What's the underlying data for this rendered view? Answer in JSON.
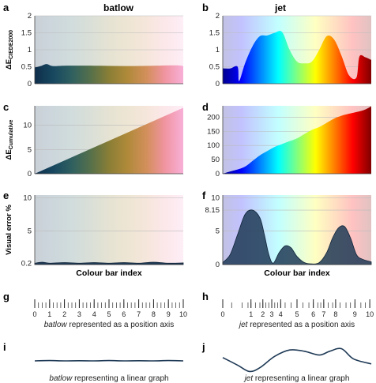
{
  "figure": {
    "columns": [
      {
        "title": "batlow",
        "colormap": "batlow"
      },
      {
        "title": "jet",
        "colormap": "jet"
      }
    ]
  },
  "colors": {
    "batlow_stops": [
      "#0f2e4c",
      "#174860",
      "#2f6060",
      "#55704a",
      "#8a7e36",
      "#b08a3a",
      "#d28f5a",
      "#f094a0",
      "#f8b0d8"
    ],
    "jet_stops": [
      "#00008f",
      "#0000ff",
      "#0080ff",
      "#00ffff",
      "#80ff80",
      "#ffff00",
      "#ff8000",
      "#ff0000",
      "#800000"
    ],
    "fill_dark": "#1f3a56",
    "grid": "#bbbbbb"
  },
  "chart_data": [
    {
      "panel": "a",
      "type": "area",
      "colormap": "batlow",
      "column_title": "batlow",
      "ylabel_main": "ΔE",
      "ylabel_sub": "CIEDE2000",
      "xlabel": "",
      "ylim": [
        0,
        2
      ],
      "yticks": [
        "0",
        "0.5",
        "1",
        "1.5",
        "2"
      ],
      "ytick_values": [
        0,
        0.5,
        1,
        1.5,
        2
      ],
      "x": [
        0,
        0.04,
        0.08,
        0.12,
        0.2,
        0.4,
        0.6,
        0.8,
        0.95,
        1
      ],
      "y": [
        0.48,
        0.52,
        0.58,
        0.52,
        0.53,
        0.53,
        0.52,
        0.53,
        0.54,
        0.52
      ]
    },
    {
      "panel": "b",
      "type": "area",
      "colormap": "jet",
      "column_title": "jet",
      "ylabel_main": "",
      "ylabel_sub": "",
      "xlabel": "",
      "ylim": [
        0,
        2
      ],
      "yticks": [
        "0",
        "0.5",
        "1",
        "1.5",
        "2"
      ],
      "ytick_values": [
        0,
        0.5,
        1,
        1.5,
        2
      ],
      "x": [
        0,
        0.05,
        0.1,
        0.11,
        0.15,
        0.2,
        0.25,
        0.3,
        0.35,
        0.4,
        0.45,
        0.5,
        0.55,
        0.6,
        0.65,
        0.7,
        0.75,
        0.8,
        0.85,
        0.9,
        0.92,
        0.96,
        1
      ],
      "y": [
        0.45,
        0.45,
        0.5,
        0.08,
        0.6,
        1.1,
        1.4,
        1.42,
        1.5,
        1.52,
        1.0,
        0.65,
        0.6,
        0.65,
        1.0,
        1.4,
        1.3,
        0.82,
        0.25,
        0.18,
        0.8,
        0.78,
        0.7
      ]
    },
    {
      "panel": "c",
      "type": "area",
      "colormap": "batlow",
      "ylabel_main": "ΔE",
      "ylabel_sub": "Cumulative",
      "xlabel": "",
      "ylim": [
        0,
        14
      ],
      "yticks": [
        "0",
        "5",
        "10"
      ],
      "ytick_values": [
        0,
        5,
        10
      ],
      "x": [
        0,
        1
      ],
      "y": [
        0,
        13.6
      ]
    },
    {
      "panel": "d",
      "type": "area",
      "colormap": "jet",
      "ylabel_main": "",
      "ylabel_sub": "",
      "xlabel": "",
      "ylim": [
        0,
        240
      ],
      "yticks": [
        "0",
        "50",
        "100",
        "150",
        "200"
      ],
      "ytick_values": [
        0,
        50,
        100,
        150,
        200
      ],
      "x": [
        0,
        0.05,
        0.1,
        0.15,
        0.2,
        0.25,
        0.3,
        0.35,
        0.4,
        0.45,
        0.5,
        0.55,
        0.6,
        0.65,
        0.7,
        0.75,
        0.8,
        0.85,
        0.9,
        0.95,
        1
      ],
      "y": [
        0,
        8,
        15,
        25,
        45,
        65,
        80,
        95,
        105,
        115,
        125,
        140,
        155,
        165,
        180,
        195,
        205,
        212,
        218,
        225,
        238
      ]
    },
    {
      "panel": "e",
      "type": "area",
      "colormap": "batlow",
      "ylabel_main": "Visual error %",
      "ylabel_sub": "",
      "xlabel": "Colour bar index",
      "ylim": [
        0,
        10.4
      ],
      "yticks": [
        "0.2",
        "5",
        "10"
      ],
      "ytick_values": [
        0.2,
        5,
        10
      ],
      "x": [
        0,
        0.05,
        0.1,
        0.2,
        0.3,
        0.4,
        0.5,
        0.6,
        0.7,
        0.8,
        0.9,
        1
      ],
      "y": [
        0.2,
        0.35,
        0.2,
        0.3,
        0.2,
        0.3,
        0.2,
        0.3,
        0.2,
        0.35,
        0.2,
        0.25
      ]
    },
    {
      "panel": "f",
      "type": "area",
      "colormap": "jet",
      "ylabel_main": "",
      "ylabel_sub": "",
      "xlabel": "Colour bar index",
      "ylim": [
        0,
        10.4
      ],
      "yticks": [
        "0",
        "5",
        "8.15",
        "10"
      ],
      "ytick_values": [
        0,
        5,
        8.15,
        10
      ],
      "x": [
        0,
        0.05,
        0.1,
        0.15,
        0.2,
        0.25,
        0.28,
        0.31,
        0.34,
        0.38,
        0.42,
        0.46,
        0.5,
        0.55,
        0.6,
        0.65,
        0.7,
        0.74,
        0.78,
        0.82,
        0.86,
        0.9,
        0.94,
        1
      ],
      "y": [
        0.3,
        1.5,
        4.5,
        7.5,
        8.15,
        7.0,
        4.5,
        1.5,
        0.2,
        1.8,
        2.8,
        2.5,
        1.2,
        0.3,
        0.1,
        0.3,
        1.8,
        4.0,
        5.5,
        5.7,
        4.0,
        1.5,
        0.8,
        0.4
      ]
    },
    {
      "panel": "g",
      "type": "position_axis",
      "colormap": "batlow",
      "ticklabels": [
        "0",
        "1",
        "2",
        "3",
        "4",
        "5",
        "6",
        "7",
        "8",
        "9",
        "10"
      ],
      "positions": [
        0,
        1,
        2,
        3,
        4,
        5,
        6,
        7,
        8,
        9,
        10
      ],
      "minor_ticks": [
        0.0,
        0.25,
        0.5,
        0.75,
        1.0,
        1.25,
        1.5,
        1.75,
        2.0,
        2.25,
        2.5,
        2.75,
        3.0,
        3.25,
        3.5,
        3.75,
        4.0,
        4.25,
        4.5,
        4.75,
        5.0,
        5.25,
        5.5,
        5.75,
        6.0,
        6.25,
        6.5,
        6.75,
        7.0,
        7.25,
        7.5,
        7.75,
        8.0,
        8.25,
        8.5,
        8.75,
        9.0,
        9.25,
        9.5,
        9.75,
        10.0
      ],
      "caption_italic": "batlow",
      "caption_rest": " represented as a position axis"
    },
    {
      "panel": "h",
      "type": "position_axis",
      "colormap": "jet",
      "ticklabels": [
        "0",
        "1",
        "2",
        "3",
        "4",
        "5",
        "6",
        "7",
        "8",
        "9",
        "10"
      ],
      "positions": [
        0,
        1.9,
        2.7,
        3.3,
        3.9,
        5.0,
        6.1,
        6.8,
        7.6,
        8.9,
        9.9
      ],
      "minor_ticks": [
        0,
        0.6,
        1.3,
        1.7,
        1.9,
        2.2,
        2.5,
        2.7,
        2.9,
        3.1,
        3.3,
        3.5,
        3.7,
        3.9,
        4.2,
        4.6,
        5.0,
        5.4,
        5.8,
        6.1,
        6.4,
        6.6,
        6.8,
        7.1,
        7.4,
        7.6,
        7.9,
        8.3,
        8.6,
        8.9,
        9.3,
        9.6,
        9.9
      ],
      "caption_italic": "jet",
      "caption_rest": " represented as a position axis"
    },
    {
      "panel": "i",
      "type": "line",
      "colormap": "batlow",
      "x": [
        0,
        0.1,
        0.2,
        0.3,
        0.4,
        0.5,
        0.6,
        0.7,
        0.8,
        0.9,
        1
      ],
      "y": [
        0.5,
        0.52,
        0.5,
        0.51,
        0.5,
        0.52,
        0.5,
        0.51,
        0.5,
        0.52,
        0.5
      ],
      "caption_italic": "batlow",
      "caption_rest": " representing a linear graph"
    },
    {
      "panel": "j",
      "type": "line",
      "colormap": "jet",
      "x": [
        0,
        0.1,
        0.18,
        0.25,
        0.35,
        0.45,
        0.55,
        0.65,
        0.72,
        0.8,
        0.88,
        1
      ],
      "y": [
        0.6,
        0.3,
        0.05,
        0.2,
        0.65,
        0.9,
        0.85,
        0.7,
        0.85,
        0.95,
        0.55,
        0.35
      ],
      "caption_italic": "jet",
      "caption_rest": " representing a linear graph"
    }
  ]
}
